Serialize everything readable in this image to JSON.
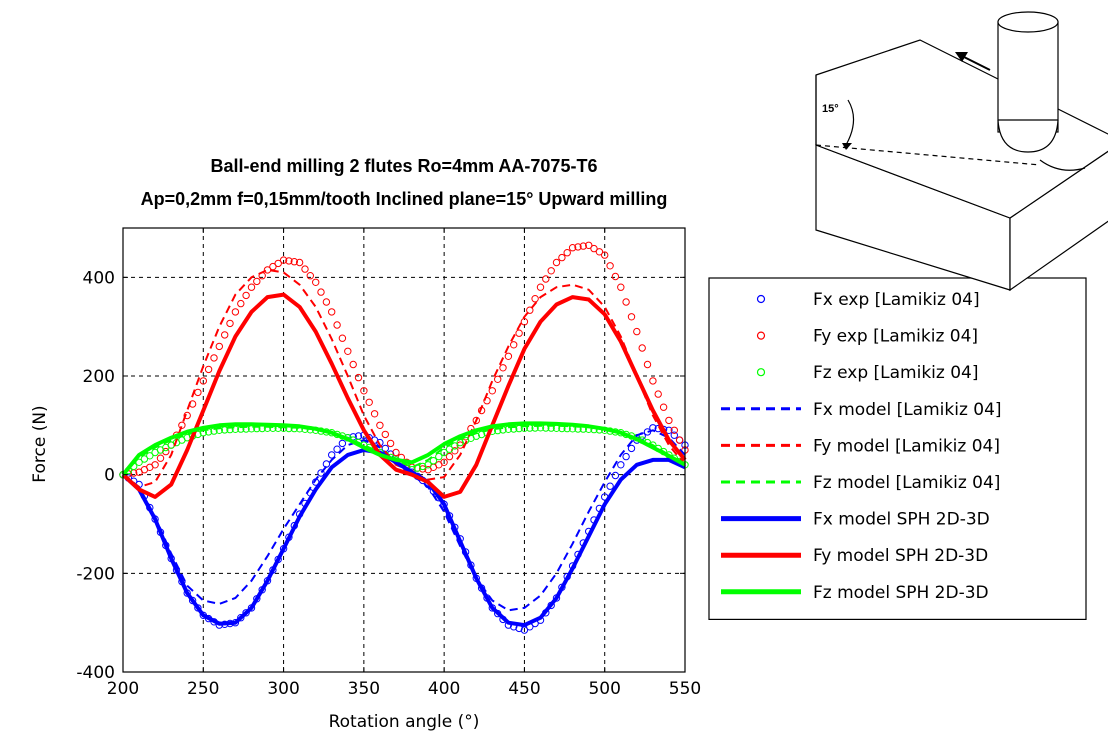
{
  "chart_data": {
    "type": "line",
    "title_lines": [
      "Ball-end milling 2 flutes Ro=4mm AA-7075-T6",
      "Ap=0,2mm f=0,15mm/tooth Inclined plane=15° Upward milling"
    ],
    "xlabel": "Rotation angle (°)",
    "ylabel": "Force (N)",
    "xlim": [
      200,
      550
    ],
    "ylim": [
      -400,
      500
    ],
    "xticks": [
      200,
      250,
      300,
      350,
      400,
      450,
      500,
      550
    ],
    "yticks": [
      -400,
      -200,
      0,
      200,
      400
    ],
    "grid": true,
    "legend_position": "right",
    "series": [
      {
        "name": "Fx exp [Lamikiz 04]",
        "style": "markers",
        "color": "#0000ff",
        "x": [
          200,
          210,
          220,
          230,
          240,
          250,
          260,
          270,
          280,
          290,
          300,
          310,
          320,
          330,
          340,
          350,
          360,
          370,
          380,
          390,
          400,
          410,
          420,
          430,
          440,
          450,
          460,
          470,
          480,
          490,
          500,
          510,
          520,
          530,
          540,
          550
        ],
        "y": [
          0,
          -20,
          -90,
          -170,
          -240,
          -285,
          -305,
          -300,
          -270,
          -215,
          -150,
          -80,
          -15,
          40,
          75,
          80,
          65,
          30,
          5,
          -20,
          -60,
          -130,
          -210,
          -270,
          -305,
          -315,
          -295,
          -250,
          -185,
          -115,
          -45,
          20,
          70,
          95,
          90,
          60
        ]
      },
      {
        "name": "Fy exp [Lamikiz 04]",
        "style": "markers",
        "color": "#ff0000",
        "x": [
          200,
          210,
          220,
          230,
          240,
          250,
          260,
          270,
          280,
          290,
          300,
          310,
          320,
          330,
          340,
          350,
          360,
          370,
          380,
          390,
          400,
          410,
          420,
          430,
          440,
          450,
          460,
          470,
          480,
          490,
          500,
          510,
          520,
          530,
          540,
          550
        ],
        "y": [
          0,
          5,
          20,
          60,
          120,
          190,
          260,
          330,
          380,
          415,
          435,
          430,
          390,
          330,
          250,
          170,
          100,
          45,
          15,
          10,
          25,
          60,
          110,
          170,
          240,
          310,
          380,
          430,
          460,
          465,
          445,
          380,
          290,
          190,
          110,
          50
        ]
      },
      {
        "name": "Fz exp [Lamikiz 04]",
        "style": "markers",
        "color": "#00ff00",
        "x": [
          200,
          210,
          220,
          230,
          240,
          250,
          260,
          270,
          280,
          290,
          300,
          310,
          320,
          330,
          340,
          350,
          360,
          370,
          380,
          390,
          400,
          410,
          420,
          430,
          440,
          450,
          460,
          470,
          480,
          490,
          500,
          510,
          520,
          530,
          540,
          550
        ],
        "y": [
          0,
          25,
          45,
          60,
          75,
          85,
          90,
          92,
          93,
          94,
          94,
          93,
          90,
          85,
          75,
          60,
          45,
          30,
          10,
          20,
          45,
          65,
          78,
          88,
          92,
          94,
          95,
          94,
          93,
          92,
          90,
          85,
          75,
          60,
          40,
          20
        ]
      },
      {
        "name": "Fx model [Lamikiz 04]",
        "style": "dashed",
        "color": "#0000ff",
        "x": [
          200,
          210,
          220,
          230,
          240,
          250,
          260,
          270,
          280,
          290,
          300,
          310,
          320,
          330,
          340,
          350,
          360,
          370,
          380,
          390,
          400,
          410,
          420,
          430,
          440,
          450,
          460,
          470,
          480,
          490,
          500,
          510,
          520,
          530,
          540,
          550
        ],
        "y": [
          0,
          -25,
          -85,
          -160,
          -225,
          -255,
          -262,
          -250,
          -215,
          -165,
          -110,
          -60,
          -10,
          30,
          60,
          70,
          55,
          25,
          0,
          -25,
          -75,
          -145,
          -210,
          -255,
          -275,
          -270,
          -245,
          -200,
          -140,
          -75,
          -15,
          40,
          80,
          90,
          75,
          40
        ]
      },
      {
        "name": "Fy model [Lamikiz 04]",
        "style": "dashed",
        "color": "#ff0000",
        "x": [
          200,
          210,
          220,
          230,
          240,
          250,
          260,
          270,
          280,
          290,
          300,
          310,
          320,
          330,
          340,
          350,
          360,
          370,
          380,
          390,
          400,
          410,
          420,
          430,
          440,
          450,
          460,
          470,
          480,
          490,
          500,
          510,
          520,
          530,
          540,
          550
        ],
        "y": [
          0,
          -25,
          -15,
          40,
          130,
          220,
          300,
          365,
          400,
          415,
          410,
          385,
          340,
          275,
          200,
          120,
          60,
          20,
          5,
          -10,
          -5,
          40,
          110,
          190,
          260,
          320,
          360,
          380,
          385,
          375,
          340,
          280,
          200,
          120,
          60,
          20
        ]
      },
      {
        "name": "Fz model [Lamikiz 04]",
        "style": "dashed",
        "color": "#00ff00",
        "x": [
          200,
          210,
          220,
          230,
          240,
          250,
          260,
          270,
          280,
          290,
          300,
          310,
          320,
          330,
          340,
          350,
          360,
          370,
          380,
          390,
          400,
          410,
          420,
          430,
          440,
          450,
          460,
          470,
          480,
          490,
          500,
          510,
          520,
          530,
          540,
          550
        ],
        "y": [
          0,
          35,
          55,
          70,
          82,
          90,
          94,
          96,
          97,
          97,
          96,
          95,
          92,
          85,
          75,
          60,
          45,
          30,
          15,
          30,
          55,
          72,
          84,
          92,
          96,
          98,
          99,
          99,
          98,
          96,
          92,
          85,
          75,
          60,
          40,
          20
        ]
      },
      {
        "name": "Fx model SPH 2D-3D",
        "style": "thick",
        "color": "#0000ff",
        "x": [
          200,
          210,
          220,
          230,
          240,
          250,
          260,
          270,
          280,
          290,
          300,
          310,
          320,
          330,
          340,
          350,
          360,
          370,
          380,
          390,
          400,
          410,
          420,
          430,
          440,
          450,
          460,
          470,
          480,
          490,
          500,
          510,
          520,
          530,
          540,
          550
        ],
        "y": [
          0,
          -30,
          -90,
          -170,
          -240,
          -285,
          -302,
          -300,
          -270,
          -215,
          -150,
          -85,
          -30,
          15,
          40,
          50,
          45,
          25,
          5,
          -15,
          -60,
          -135,
          -210,
          -270,
          -300,
          -305,
          -290,
          -250,
          -190,
          -125,
          -60,
          -10,
          20,
          30,
          30,
          15
        ]
      },
      {
        "name": "Fy model SPH 2D-3D",
        "style": "thick",
        "color": "#ff0000",
        "x": [
          200,
          210,
          220,
          230,
          240,
          250,
          260,
          270,
          280,
          290,
          300,
          310,
          320,
          330,
          340,
          350,
          360,
          370,
          380,
          390,
          400,
          410,
          420,
          430,
          440,
          450,
          460,
          470,
          480,
          490,
          500,
          510,
          520,
          530,
          540,
          550
        ],
        "y": [
          0,
          -30,
          -45,
          -20,
          50,
          130,
          210,
          280,
          330,
          360,
          365,
          340,
          290,
          225,
          155,
          90,
          40,
          10,
          0,
          -15,
          -45,
          -35,
          20,
          100,
          180,
          255,
          310,
          345,
          360,
          355,
          325,
          270,
          200,
          130,
          70,
          30
        ]
      },
      {
        "name": "Fz model SPH 2D-3D",
        "style": "thick",
        "color": "#00ff00",
        "x": [
          200,
          210,
          220,
          230,
          240,
          250,
          260,
          270,
          280,
          290,
          300,
          310,
          320,
          330,
          340,
          350,
          360,
          370,
          380,
          390,
          400,
          410,
          420,
          430,
          440,
          450,
          460,
          470,
          480,
          490,
          500,
          510,
          520,
          530,
          540,
          550
        ],
        "y": [
          0,
          40,
          60,
          75,
          87,
          95,
          100,
          102,
          102,
          101,
          100,
          98,
          93,
          85,
          72,
          55,
          40,
          30,
          25,
          40,
          62,
          78,
          90,
          98,
          102,
          104,
          104,
          103,
          101,
          98,
          93,
          85,
          72,
          55,
          38,
          20
        ]
      }
    ]
  },
  "sketch": {
    "angle_label": "15°"
  }
}
